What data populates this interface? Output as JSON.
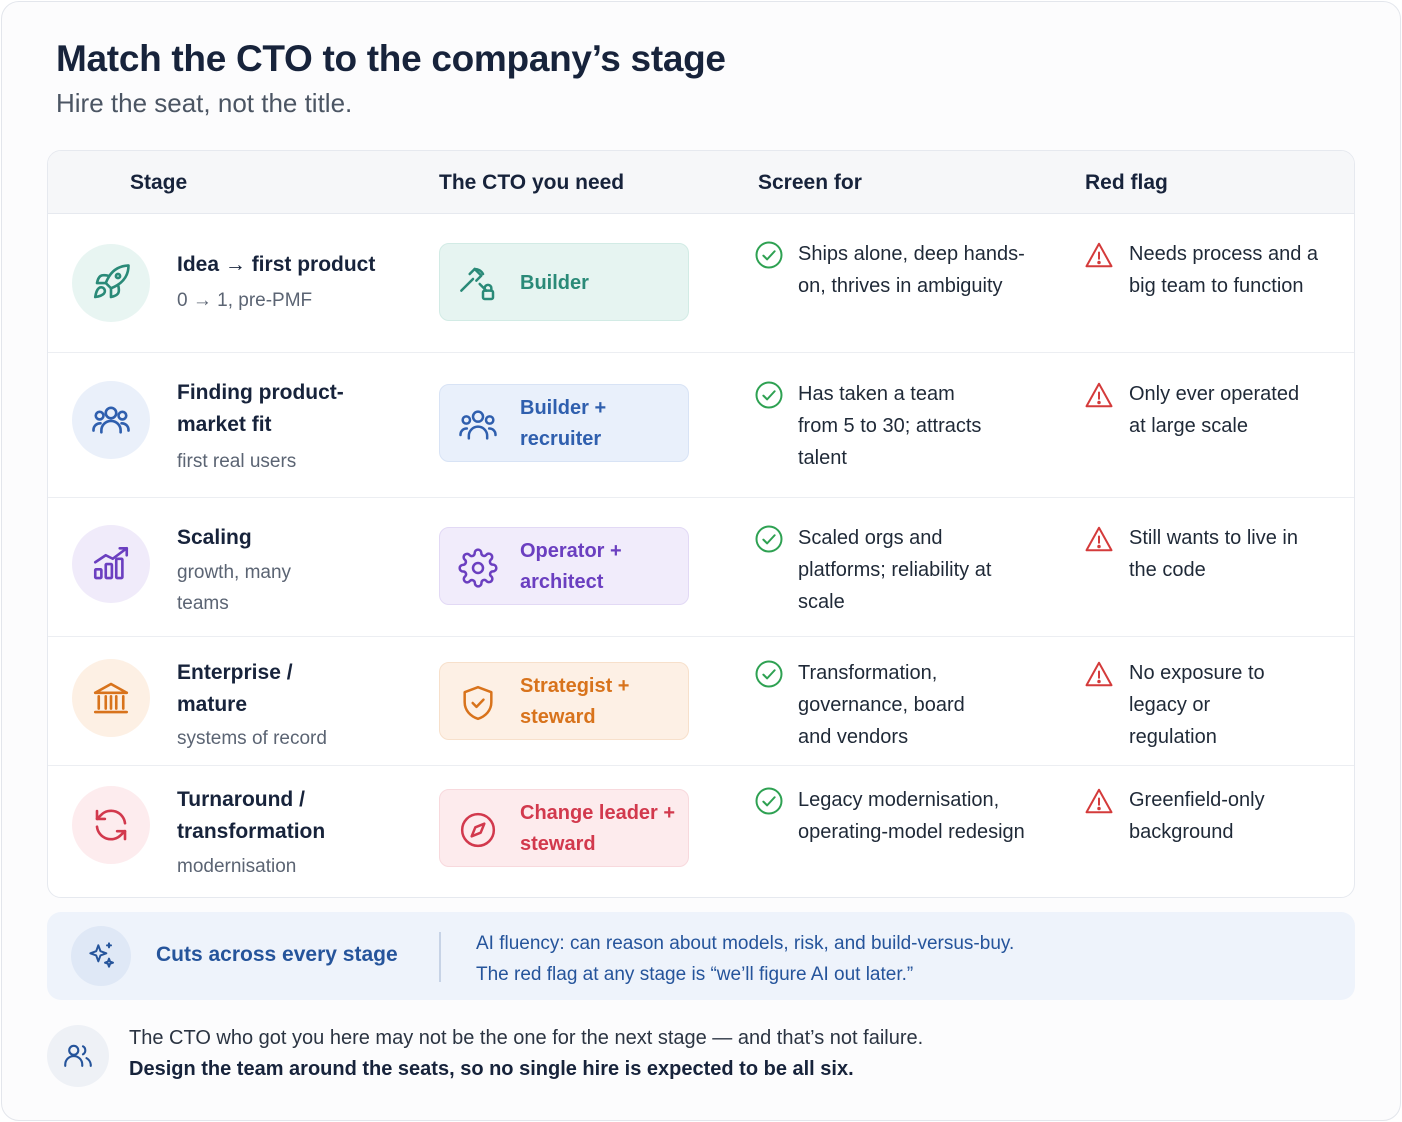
{
  "header": {
    "title": "Match the CTO to the company’s stage",
    "subtitle": "Hire the seat, not the title."
  },
  "table": {
    "columns": [
      "Stage",
      "The CTO you need",
      "Screen for",
      "Red flag"
    ],
    "rows": [
      {
        "stage": "Idea → first product",
        "stage_sub": "0 → 1, pre-PMF",
        "stage_icon": "rocket-icon",
        "cto": "Builder",
        "cto_icon": "hammer-icon",
        "screen_for": "Ships alone, deep hands-on, thrives in ambiguity",
        "red_flag": "Needs process and a big team to function",
        "color": "#2a8a78"
      },
      {
        "stage": "Finding product-market fit",
        "stage_sub": "first real users",
        "stage_icon": "users-icon",
        "cto": "Builder + recruiter",
        "cto_icon": "team-icon",
        "screen_for": "Has taken a team from 5 to 30; attracts talent",
        "red_flag": "Only ever operated at large scale",
        "color": "#2f5fae"
      },
      {
        "stage": "Scaling",
        "stage_sub": "growth, many teams",
        "stage_icon": "bar-chart-icon",
        "cto": "Operator + architect",
        "cto_icon": "gear-icon",
        "screen_for": "Scaled orgs and platforms; reliability at scale",
        "red_flag": "Still wants to live in the code",
        "color": "#6b3fc0"
      },
      {
        "stage": "Enterprise / mature",
        "stage_sub": "systems of record",
        "stage_icon": "bank-icon",
        "cto": "Strategist + steward",
        "cto_icon": "shield-icon",
        "screen_for": "Transformation, governance, board and vendors",
        "red_flag": "No exposure to legacy or regulation",
        "color": "#d8731c"
      },
      {
        "stage": "Turnaround / transformation",
        "stage_sub": "modernisation",
        "stage_icon": "refresh-icon",
        "cto": "Change leader + steward",
        "cto_icon": "compass-icon",
        "screen_for": "Legacy modernisation, operating-model redesign",
        "red_flag": "Greenfield-only background",
        "color": "#d2394d"
      }
    ]
  },
  "across": {
    "title": "Cuts across every stage",
    "line1": "AI fluency: can reason about models, risk, and build-versus-buy.",
    "line2": "The red flag at any stage is “we’ll figure AI out later.”"
  },
  "footer": {
    "line1": "The CTO who got you here may not be the one for the next stage — and that’s not failure.",
    "line2": "Design the team around the seats, so no single hire is expected to be all six."
  }
}
